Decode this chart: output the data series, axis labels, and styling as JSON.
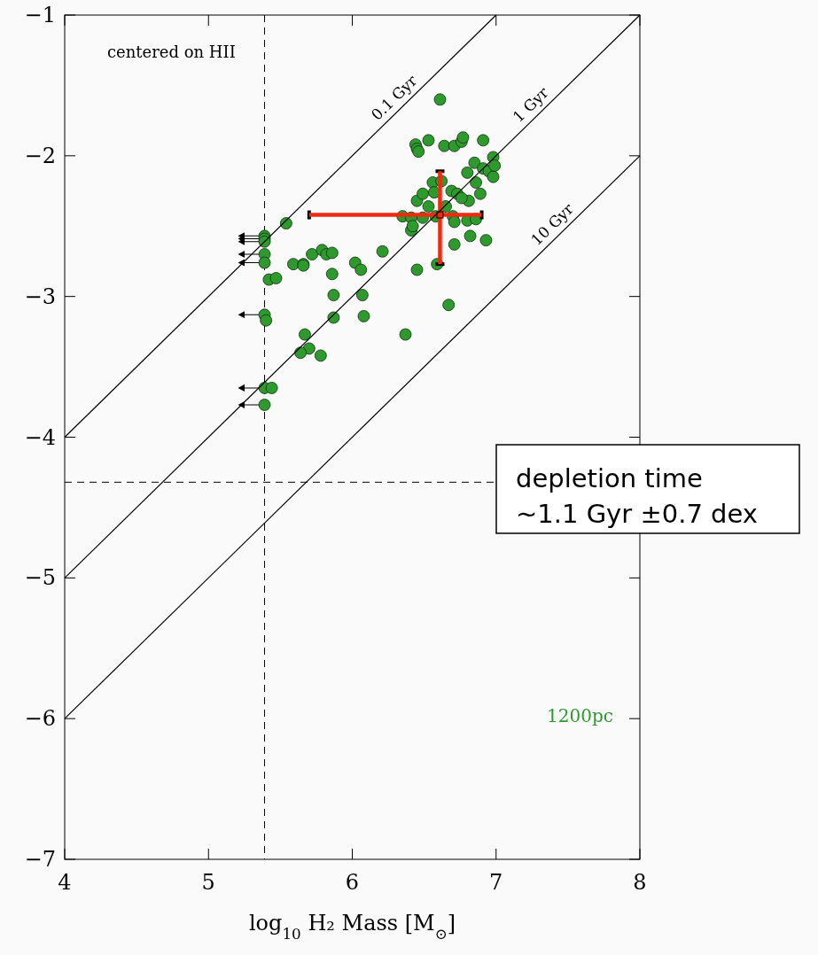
{
  "chart_data": {
    "type": "scatter",
    "xlabel": "log$_{10}$ H₂ Mass [M$_{⊙}$]",
    "xlim": [
      4,
      8
    ],
    "xticks": [
      4,
      5,
      6,
      7,
      8
    ],
    "ylim": [
      -7,
      -1
    ],
    "yticks": [
      -7,
      -6,
      -5,
      -4,
      -3,
      -2,
      -1
    ],
    "legend": "bottom right",
    "series": [
      {
        "name": "1200pc",
        "color": "#2e9a2e",
        "x": [
          5.39,
          5.39,
          5.39,
          5.39,
          5.39,
          5.39,
          5.39,
          5.39,
          5.4,
          5.44,
          5.54,
          5.42,
          5.47,
          5.59,
          5.66,
          5.66,
          5.72,
          5.79,
          5.82,
          5.86,
          5.86,
          5.87,
          5.87,
          6.02,
          6.06,
          6.07,
          6.08,
          5.67,
          5.7,
          5.64,
          5.78,
          6.21,
          6.37,
          6.45,
          6.59,
          6.67,
          6.71,
          6.82,
          6.93,
          6.61,
          6.44,
          6.45,
          6.46,
          6.53,
          6.64,
          6.71,
          6.76,
          6.77,
          6.91,
          6.35,
          6.41,
          6.49,
          6.41,
          6.42,
          6.45,
          6.49,
          6.53,
          6.56,
          6.57,
          6.58,
          6.69,
          6.73,
          6.7,
          6.71,
          6.8,
          6.86,
          6.81,
          6.8,
          6.85,
          6.86,
          6.89,
          6.91,
          6.95,
          6.98,
          6.99,
          6.98,
          6.65,
          6.76,
          6.62
        ],
        "values": [
          -2.57,
          -2.59,
          -2.61,
          -2.7,
          -2.76,
          -3.13,
          -3.65,
          -3.77,
          -3.17,
          -3.65,
          -2.48,
          -2.88,
          -2.87,
          -2.77,
          -2.77,
          -2.78,
          -2.7,
          -2.67,
          -2.7,
          -2.69,
          -2.84,
          -2.99,
          -3.15,
          -2.76,
          -2.81,
          -2.99,
          -3.14,
          -3.27,
          -3.37,
          -3.4,
          -3.42,
          -2.68,
          -3.27,
          -2.81,
          -2.77,
          -3.06,
          -2.63,
          -2.57,
          -2.6,
          -1.6,
          -1.92,
          -1.95,
          -1.97,
          -1.89,
          -1.93,
          -1.93,
          -1.9,
          -1.87,
          -1.89,
          -2.43,
          -2.44,
          -2.44,
          -2.53,
          -2.5,
          -2.32,
          -2.27,
          -2.36,
          -2.19,
          -2.26,
          -2.43,
          -2.25,
          -2.27,
          -2.43,
          -2.47,
          -2.46,
          -2.45,
          -2.32,
          -2.12,
          -2.05,
          -2.19,
          -2.27,
          -2.09,
          -2.11,
          -2.01,
          -2.07,
          -2.15,
          -2.36,
          -2.3,
          -2.18
        ],
        "marker": "circle"
      },
      {
        "color": "#ee2a10",
        "marker": "square",
        "x": [
          6.61
        ],
        "values": [
          -2.42
        ],
        "xerrors": [
          [
            5.7,
            6.9
          ]
        ],
        "errors": [
          [
            -2.77,
            -2.11
          ]
        ]
      },
      {
        "type": "line",
        "color": "#000000",
        "marker": "none",
        "x": [
          4,
          7
        ],
        "values": [
          -4,
          -1
        ]
      },
      {
        "type": "line",
        "color": "#000000",
        "marker": "none",
        "x": [
          4,
          8
        ],
        "values": [
          -5,
          -1
        ]
      },
      {
        "type": "line",
        "color": "#000000",
        "marker": "none",
        "x": [
          4,
          8
        ],
        "values": [
          -6,
          -2
        ]
      }
    ],
    "ref_lines": [
      {
        "axis": "x",
        "value": 5.39,
        "line_style": "dashed",
        "color": "#000000"
      },
      {
        "axis": "y",
        "value": -4.32,
        "line_style": "dashed",
        "color": "#000000"
      }
    ],
    "annotations": [
      {
        "text": "0.1 Gyr",
        "x": 6.35,
        "y": -1.65
      },
      {
        "text": "1 Gyr",
        "x": 7.3,
        "y": -1.7
      },
      {
        "text": "10 Gyr",
        "x": 7.45,
        "y": -2.55
      },
      "centered on HII",
      "depletion time\n~1.1 Gyr ±0.7 dex"
    ]
  }
}
